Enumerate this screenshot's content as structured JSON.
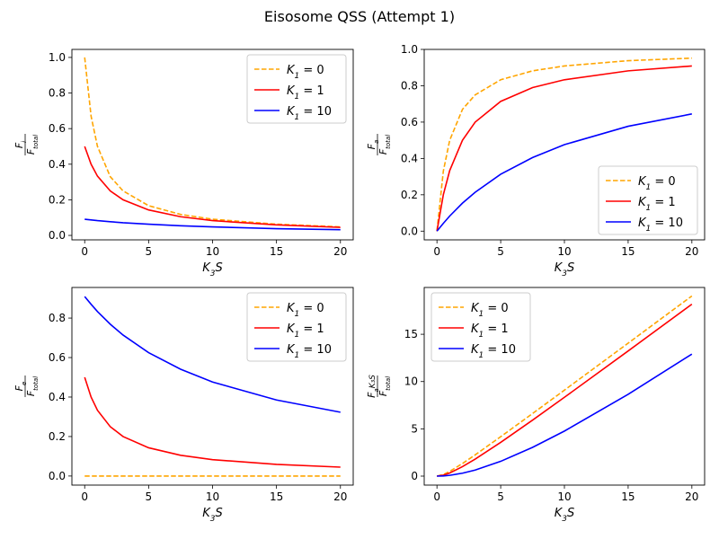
{
  "suptitle": "Eisosome QSS (Attempt 1)",
  "colors": {
    "K1=0": "#ffa500",
    "K1=1": "#ff0000",
    "K1=10": "#0000ff"
  },
  "chart_data": [
    {
      "type": "line",
      "xlabel": "K3S",
      "ylabel": "Fi/Ftotal",
      "xlim": [
        -1,
        21
      ],
      "ylim": [
        -0.025,
        1.045
      ],
      "xticks": [
        0,
        5,
        10,
        15,
        20
      ],
      "yticks": [
        0.0,
        0.2,
        0.4,
        0.6,
        0.8,
        1.0
      ],
      "ytick_labels": [
        "0.0",
        "0.2",
        "0.4",
        "0.6",
        "0.8",
        "1.0"
      ],
      "legend": "top-right",
      "grid": false,
      "x": [
        0,
        0.5,
        1,
        2,
        3,
        5,
        7.5,
        10,
        15,
        20
      ],
      "series": [
        {
          "name": "K1 = 0",
          "style": "dashed",
          "color": "#ffa500",
          "values": [
            1.0,
            0.67,
            0.5,
            0.33,
            0.25,
            0.167,
            0.118,
            0.091,
            0.063,
            0.048
          ]
        },
        {
          "name": "K1 = 1",
          "style": "solid",
          "color": "#ff0000",
          "values": [
            0.5,
            0.4,
            0.333,
            0.25,
            0.2,
            0.143,
            0.105,
            0.083,
            0.059,
            0.045
          ]
        },
        {
          "name": "K1 = 10",
          "style": "solid",
          "color": "#0000ff",
          "values": [
            0.091,
            0.087,
            0.083,
            0.077,
            0.071,
            0.063,
            0.054,
            0.048,
            0.038,
            0.032
          ]
        }
      ]
    },
    {
      "type": "line",
      "xlabel": "K3S",
      "ylabel": "Fa/Ftotal",
      "xlim": [
        -1,
        21
      ],
      "ylim": [
        -0.048,
        1.0
      ],
      "xticks": [
        0,
        5,
        10,
        15,
        20
      ],
      "yticks": [
        0.0,
        0.2,
        0.4,
        0.6,
        0.8,
        1.0
      ],
      "ytick_labels": [
        "0.0",
        "0.2",
        "0.4",
        "0.6",
        "0.8",
        "1.0"
      ],
      "legend": "bottom-right",
      "grid": false,
      "x": [
        0,
        0.5,
        1,
        2,
        3,
        5,
        7.5,
        10,
        15,
        20
      ],
      "series": [
        {
          "name": "K1 = 0",
          "style": "dashed",
          "color": "#ffa500",
          "values": [
            0.0,
            0.33,
            0.5,
            0.67,
            0.75,
            0.833,
            0.882,
            0.909,
            0.938,
            0.952
          ]
        },
        {
          "name": "K1 = 1",
          "style": "solid",
          "color": "#ff0000",
          "values": [
            0.0,
            0.2,
            0.333,
            0.5,
            0.6,
            0.714,
            0.79,
            0.833,
            0.882,
            0.909
          ]
        },
        {
          "name": "K1 = 10",
          "style": "solid",
          "color": "#0000ff",
          "values": [
            0.0,
            0.043,
            0.083,
            0.154,
            0.214,
            0.313,
            0.405,
            0.476,
            0.577,
            0.645
          ]
        }
      ]
    },
    {
      "type": "line",
      "xlabel": "K3S",
      "ylabel": "Fe/Ftotal",
      "xlim": [
        -1,
        21
      ],
      "ylim": [
        -0.046,
        0.955
      ],
      "xticks": [
        0,
        5,
        10,
        15,
        20
      ],
      "yticks": [
        0.0,
        0.2,
        0.4,
        0.6,
        0.8
      ],
      "ytick_labels": [
        "0.0",
        "0.2",
        "0.4",
        "0.6",
        "0.8"
      ],
      "legend": "top-right",
      "grid": false,
      "x": [
        0,
        0.5,
        1,
        2,
        3,
        5,
        7.5,
        10,
        15,
        20
      ],
      "series": [
        {
          "name": "K1 = 0",
          "style": "dashed",
          "color": "#ffa500",
          "values": [
            0,
            0,
            0,
            0,
            0,
            0,
            0,
            0,
            0,
            0
          ]
        },
        {
          "name": "K1 = 1",
          "style": "solid",
          "color": "#ff0000",
          "values": [
            0.5,
            0.4,
            0.333,
            0.25,
            0.2,
            0.143,
            0.105,
            0.083,
            0.059,
            0.045
          ]
        },
        {
          "name": "K1 = 10",
          "style": "solid",
          "color": "#0000ff",
          "values": [
            0.909,
            0.87,
            0.833,
            0.769,
            0.714,
            0.625,
            0.541,
            0.476,
            0.385,
            0.323
          ]
        }
      ]
    },
    {
      "type": "line",
      "xlabel": "K3S",
      "ylabel": "FaK3S/Ftotal",
      "xlim": [
        -1,
        21
      ],
      "ylim": [
        -0.95,
        19.95
      ],
      "xticks": [
        0,
        5,
        10,
        15,
        20
      ],
      "yticks": [
        0,
        5,
        10,
        15
      ],
      "ytick_labels": [
        "0",
        "5",
        "10",
        "15"
      ],
      "legend": "top-left",
      "grid": false,
      "x": [
        0,
        0.5,
        1,
        2,
        3,
        5,
        7.5,
        10,
        15,
        20
      ],
      "series": [
        {
          "name": "K1 = 0",
          "style": "dashed",
          "color": "#ffa500",
          "values": [
            0,
            0.167,
            0.5,
            1.333,
            2.25,
            4.167,
            6.618,
            9.091,
            14.063,
            19.048
          ]
        },
        {
          "name": "K1 = 1",
          "style": "solid",
          "color": "#ff0000",
          "values": [
            0,
            0.1,
            0.333,
            1.0,
            1.8,
            3.571,
            5.921,
            8.333,
            13.235,
            18.182
          ]
        },
        {
          "name": "K1 = 10",
          "style": "solid",
          "color": "#0000ff",
          "values": [
            0,
            0.022,
            0.083,
            0.308,
            0.643,
            1.563,
            3.041,
            4.762,
            8.654,
            12.903
          ]
        }
      ]
    }
  ]
}
